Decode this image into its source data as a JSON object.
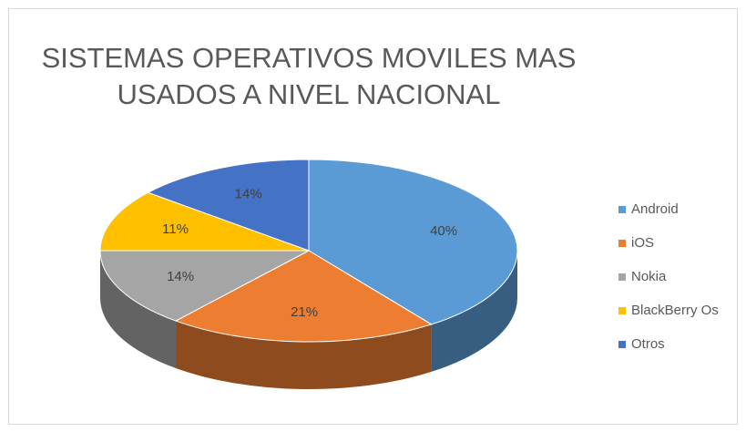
{
  "chart_data": {
    "type": "pie",
    "title": [
      "SISTEMAS OPERATIVOS MOVILES MAS",
      "USADOS A NIVEL NACIONAL"
    ],
    "categories": [
      "Android",
      "iOS",
      "Nokia",
      "BlackBerry Os",
      "Otros"
    ],
    "values": [
      40,
      21,
      14,
      11,
      14
    ],
    "value_labels": [
      "40%",
      "21%",
      "14%",
      "11%",
      "14%"
    ],
    "colors": [
      "#5b9bd5",
      "#ed7d31",
      "#a5a5a5",
      "#ffc000",
      "#4472c4"
    ],
    "legend": "right"
  }
}
